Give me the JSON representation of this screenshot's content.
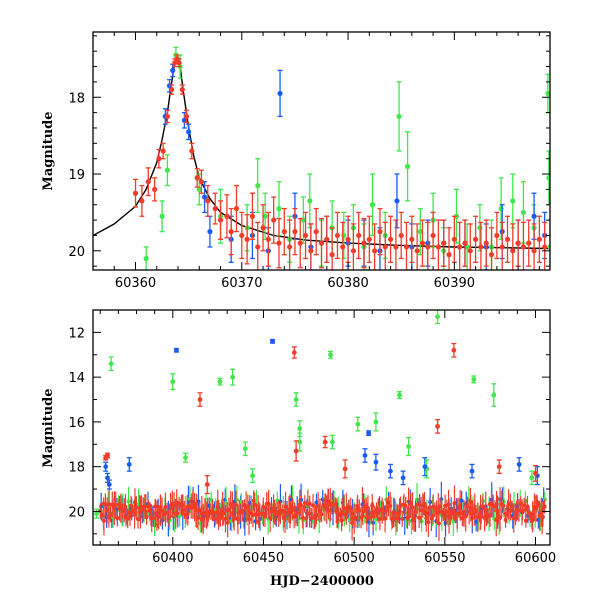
{
  "chart_data": [
    {
      "type": "scatter",
      "panel": "top",
      "title": "",
      "xlabel": "",
      "ylabel": "Magnitude",
      "xlim": [
        60356,
        60399
      ],
      "ylim": [
        20.25,
        17.15
      ],
      "y_inverted": true,
      "xticks": [
        60360,
        60370,
        60380,
        60390
      ],
      "yticks": [
        18,
        19,
        20
      ],
      "grid": false,
      "legend": "none",
      "colors": {
        "green": "#3fe84a",
        "blue": "#1a5cf2",
        "red": "#f23c2a",
        "model": "#000000"
      },
      "model_curve": {
        "name": "",
        "x": [
          60356,
          60358,
          60360,
          60361,
          60362,
          60362.5,
          60363,
          60363.3,
          60363.6,
          60363.8,
          60364.0,
          60364.2,
          60364.5,
          60365,
          60365.5,
          60366,
          60367,
          60368,
          60370,
          60373,
          60376,
          60380,
          60385,
          60390,
          60399
        ],
        "y": [
          19.8,
          19.65,
          19.42,
          19.2,
          18.85,
          18.55,
          18.2,
          17.9,
          17.62,
          17.5,
          17.48,
          17.6,
          17.92,
          18.4,
          18.78,
          19.05,
          19.32,
          19.5,
          19.67,
          19.8,
          19.86,
          19.9,
          19.93,
          19.95,
          19.97
        ]
      },
      "series": [
        {
          "name": "",
          "color": "#3fe84a",
          "x": [
            60361.0,
            60362.5,
            60363.0,
            60363.8,
            60364.2,
            60366.0,
            60368.0,
            60370.5,
            60371.5,
            60372.2,
            60373.5,
            60374.5,
            60375.8,
            60376.4,
            60377.5,
            60378.5,
            60379.6,
            60380.5,
            60381.5,
            60382.3,
            60383.5,
            60384.8,
            60385.6,
            60386.8,
            60388.0,
            60389.0,
            60390.2,
            60391.2,
            60392.4,
            60393.5,
            60394.4,
            60395.5,
            60396.5,
            60397.5,
            60398.8,
            60398.9,
            60399.0
          ],
          "y": [
            20.1,
            19.55,
            18.95,
            17.45,
            17.6,
            19.2,
            19.55,
            19.7,
            19.15,
            19.55,
            19.45,
            19.85,
            19.6,
            19.35,
            19.9,
            19.7,
            19.8,
            19.7,
            19.95,
            19.4,
            19.8,
            18.25,
            18.9,
            19.75,
            19.6,
            20.0,
            19.55,
            19.95,
            19.7,
            19.95,
            19.45,
            19.35,
            19.5,
            19.7,
            17.95,
            19.05,
            19.95
          ],
          "err": [
            0.15,
            0.2,
            0.2,
            0.1,
            0.15,
            0.2,
            0.35,
            0.3,
            0.35,
            0.3,
            0.35,
            0.3,
            0.3,
            0.35,
            0.3,
            0.35,
            0.3,
            0.3,
            0.3,
            0.4,
            0.3,
            0.45,
            0.45,
            0.3,
            0.35,
            0.3,
            0.35,
            0.3,
            0.3,
            0.35,
            0.4,
            0.35,
            0.4,
            0.3,
            0.25,
            0.35,
            0.35
          ]
        },
        {
          "name": "",
          "color": "#1a5cf2",
          "x": [
            60362.8,
            60363.2,
            60363.5,
            60364.6,
            60365.0,
            60366.5,
            60367.0,
            60369.0,
            60371.0,
            60372.5,
            60373.6,
            60375.0,
            60376.5,
            60378.0,
            60380.0,
            60381.5,
            60383.0,
            60384.6,
            60386.0,
            60387.5,
            60389.0,
            60391.0,
            60393.0,
            60394.5,
            60396.0,
            60397.5,
            60398.5
          ],
          "y": [
            18.25,
            17.85,
            17.65,
            18.3,
            18.45,
            19.3,
            19.75,
            19.85,
            19.8,
            20.0,
            17.95,
            19.55,
            19.95,
            19.85,
            19.9,
            19.9,
            20.0,
            19.35,
            19.95,
            19.9,
            19.9,
            19.9,
            19.95,
            19.75,
            19.9,
            19.55,
            19.8
          ],
          "err": [
            0.1,
            0.08,
            0.08,
            0.1,
            0.1,
            0.2,
            0.2,
            0.3,
            0.3,
            0.3,
            0.3,
            0.3,
            0.3,
            0.3,
            0.3,
            0.3,
            0.3,
            0.35,
            0.3,
            0.3,
            0.3,
            0.3,
            0.3,
            0.35,
            0.3,
            0.3,
            0.3
          ]
        },
        {
          "name": "",
          "color": "#f23c2a",
          "x": [
            60360.0,
            60360.6,
            60361.2,
            60361.8,
            60362.2,
            60362.6,
            60363.0,
            60363.4,
            60363.7,
            60363.9,
            60364.1,
            60364.4,
            60364.8,
            60365.3,
            60365.8,
            60366.2,
            60366.8,
            60367.5,
            60368.0,
            60368.6,
            60369.0,
            60369.5,
            60370.0,
            60370.5,
            60371.0,
            60371.5,
            60372.0,
            60372.5,
            60373.0,
            60373.5,
            60374.0,
            60374.5,
            60375.0,
            60375.5,
            60376.0,
            60376.5,
            60377.0,
            60377.5,
            60378.0,
            60378.5,
            60379.0,
            60379.5,
            60380.0,
            60380.5,
            60381.0,
            60381.5,
            60382.0,
            60382.5,
            60383.0,
            60383.5,
            60384.0,
            60384.5,
            60385.0,
            60385.5,
            60386.0,
            60386.5,
            60387.0,
            60387.5,
            60388.0,
            60388.5,
            60389.0,
            60389.5,
            60390.0,
            60390.5,
            60391.0,
            60391.5,
            60392.0,
            60392.5,
            60393.0,
            60393.5,
            60394.0,
            60394.5,
            60395.0,
            60395.5,
            60396.0,
            60396.5,
            60397.0,
            60397.5,
            60398.0,
            60398.5
          ],
          "y": [
            19.25,
            19.35,
            19.1,
            19.2,
            18.8,
            18.7,
            18.25,
            17.9,
            17.55,
            17.5,
            17.55,
            17.9,
            18.25,
            18.7,
            19.05,
            19.1,
            19.35,
            19.45,
            19.6,
            19.55,
            19.75,
            19.45,
            19.8,
            19.85,
            19.55,
            19.95,
            19.7,
            19.85,
            19.6,
            19.9,
            19.75,
            19.95,
            19.75,
            19.9,
            19.8,
            20.0,
            19.75,
            19.9,
            19.85,
            20.05,
            19.8,
            19.95,
            19.85,
            20.0,
            19.8,
            19.9,
            19.85,
            20.0,
            19.75,
            19.95,
            19.85,
            19.95,
            19.8,
            19.95,
            19.85,
            20.0,
            19.9,
            19.95,
            19.8,
            19.95,
            19.9,
            20.05,
            19.85,
            19.95,
            19.9,
            20.0,
            19.85,
            19.95,
            19.9,
            20.05,
            19.8,
            19.95,
            19.85,
            20.0,
            19.9,
            19.95,
            19.9,
            20.0,
            19.85,
            19.95
          ],
          "err": [
            0.18,
            0.2,
            0.18,
            0.15,
            0.12,
            0.1,
            0.08,
            0.06,
            0.05,
            0.05,
            0.05,
            0.06,
            0.08,
            0.1,
            0.12,
            0.15,
            0.2,
            0.2,
            0.25,
            0.28,
            0.3,
            0.3,
            0.3,
            0.32,
            0.3,
            0.32,
            0.3,
            0.35,
            0.3,
            0.32,
            0.3,
            0.35,
            0.3,
            0.32,
            0.3,
            0.35,
            0.3,
            0.32,
            0.3,
            0.35,
            0.3,
            0.32,
            0.3,
            0.35,
            0.3,
            0.32,
            0.3,
            0.35,
            0.3,
            0.32,
            0.3,
            0.35,
            0.3,
            0.32,
            0.3,
            0.35,
            0.3,
            0.32,
            0.3,
            0.35,
            0.3,
            0.35,
            0.3,
            0.32,
            0.3,
            0.35,
            0.3,
            0.32,
            0.3,
            0.35,
            0.3,
            0.32,
            0.3,
            0.35,
            0.3,
            0.32,
            0.3,
            0.35,
            0.3,
            0.32
          ]
        }
      ]
    },
    {
      "type": "scatter",
      "panel": "bottom",
      "title": "",
      "xlabel": "HJD−2400000",
      "ylabel": "Magnitude",
      "xlim": [
        60356,
        60608
      ],
      "ylim": [
        21.5,
        11.0
      ],
      "y_inverted": true,
      "xticks": [
        60400,
        60450,
        60500,
        60550,
        60600
      ],
      "yticks": [
        12,
        14,
        16,
        18,
        20
      ],
      "grid": false,
      "legend": "none",
      "colors": {
        "green": "#3fe84a",
        "blue": "#1a5cf2",
        "red": "#f23c2a"
      },
      "band": {
        "x_start": 60360,
        "x_end": 60606,
        "center": 20.0,
        "half_width": 0.55,
        "n_points": 260
      },
      "series": [
        {
          "name": "",
          "color": "#3fe84a",
          "x": [
            60358,
            60366,
            60400,
            60426,
            60433,
            60468,
            60487,
            60502,
            60512,
            60525,
            60530,
            60546,
            60566,
            60577,
            60440,
            60470,
            60488,
            60540,
            60598,
            60407,
            60444,
            60470
          ],
          "y": [
            20.1,
            13.4,
            14.2,
            14.2,
            14.0,
            15.0,
            13.0,
            16.1,
            16.0,
            14.8,
            17.1,
            11.3,
            14.1,
            14.8,
            17.2,
            16.3,
            16.9,
            18.1,
            18.5,
            17.6,
            18.4,
            16.9
          ],
          "err": [
            0.2,
            0.3,
            0.35,
            0.15,
            0.35,
            0.3,
            0.15,
            0.3,
            0.4,
            0.15,
            0.4,
            0.3,
            0.15,
            0.5,
            0.3,
            0.35,
            0.3,
            0.4,
            0.3,
            0.2,
            0.3,
            0.4
          ]
        },
        {
          "name": "",
          "color": "#1a5cf2",
          "x": [
            60363,
            60364,
            60365,
            60376,
            60402,
            60455,
            60506,
            60508,
            60512,
            60520,
            60527,
            60539,
            60565,
            60591,
            60601
          ],
          "y": [
            18.0,
            18.5,
            18.8,
            17.9,
            12.8,
            12.4,
            17.5,
            16.5,
            17.8,
            18.2,
            18.5,
            18.0,
            18.2,
            17.9,
            18.4
          ],
          "err": [
            0.2,
            0.2,
            0.2,
            0.3,
            0.08,
            0.08,
            0.3,
            0.1,
            0.35,
            0.3,
            0.3,
            0.4,
            0.3,
            0.3,
            0.4
          ]
        },
        {
          "name": "",
          "color": "#f23c2a",
          "x": [
            60363,
            60364,
            60415,
            60419,
            60467,
            60468,
            60484,
            60495,
            60546,
            60555,
            60580,
            60600
          ],
          "y": [
            17.6,
            17.5,
            15.0,
            18.8,
            12.9,
            17.3,
            16.9,
            18.1,
            16.2,
            12.8,
            18.0,
            18.3
          ],
          "err": [
            0.1,
            0.1,
            0.3,
            0.4,
            0.25,
            0.45,
            0.25,
            0.4,
            0.3,
            0.3,
            0.3,
            0.35
          ]
        }
      ]
    }
  ]
}
